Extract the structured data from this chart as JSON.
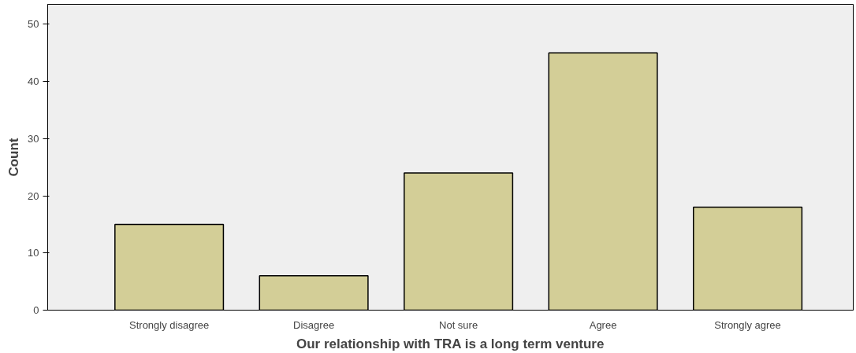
{
  "chart_data": {
    "type": "bar",
    "xlabel": "Our relationship with TRA is a long term venture",
    "ylabel": "Count",
    "categories": [
      "Strongly disagree",
      "Disagree",
      "Not sure",
      "Agree",
      "Strongly agree"
    ],
    "values": [
      15,
      6,
      24,
      45,
      18
    ],
    "color": "#d3ce97",
    "ylim": [
      0,
      53.5
    ],
    "yticks": [
      0,
      10,
      20,
      30,
      40,
      50
    ],
    "grid": false
  }
}
